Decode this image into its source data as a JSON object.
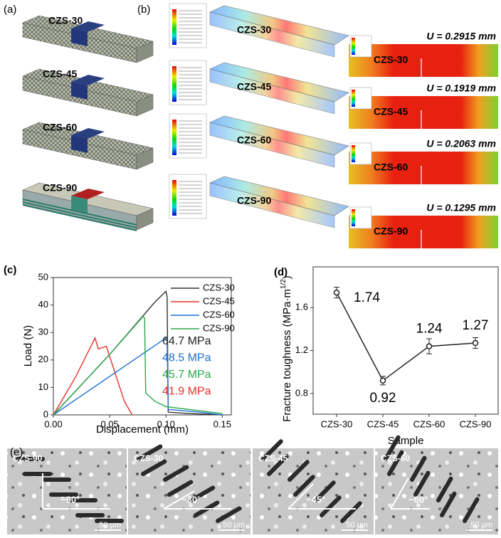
{
  "figure": {
    "panel_a": {
      "label": "(a)",
      "samples": [
        "CZS-30",
        "CZS-45",
        "CZS-60",
        "CZS-90"
      ]
    },
    "panel_b": {
      "label": "(b)",
      "samples": [
        "CZS-30",
        "CZS-45",
        "CZS-60",
        "CZS-90"
      ],
      "zoom_samples": [
        "CZS-30",
        "CZS-45",
        "CZS-60",
        "CZS-90"
      ],
      "displacements": [
        "U = 0.2915 mm",
        "U = 0.1919 mm",
        "U = 0.2063 mm",
        "U = 0.1295 mm"
      ]
    },
    "panel_e": {
      "label": "(e)",
      "images": [
        {
          "sample": "CZS-90",
          "angle": "~90°",
          "scale": "50 μm"
        },
        {
          "sample": "CZS-30",
          "angle": "~30°",
          "scale": "50 μm"
        },
        {
          "sample": "CZS-45",
          "angle": "~45°",
          "scale": "50 μm"
        },
        {
          "sample": "CZS-60",
          "angle": "~60°",
          "scale": "50 μm"
        }
      ]
    }
  },
  "chart_data": [
    {
      "type": "line",
      "panel": "(c)",
      "xlabel": "Displacement (mm)",
      "ylabel": "Load (N)",
      "xlim": [
        0,
        0.158
      ],
      "ylim": [
        0,
        50
      ],
      "xticks": [
        {
          "value": 0,
          "label": "0.00"
        },
        0.05,
        {
          "value": 0.1,
          "label": "0.10"
        },
        0.15
      ],
      "yticks": [
        0,
        10,
        20,
        30,
        40,
        50
      ],
      "series": [
        {
          "name": "CZS-30",
          "color": "#333333",
          "x": [
            0,
            0.05,
            0.09,
            0.1,
            0.101,
            0.102,
            0.12,
            0.15
          ],
          "values": [
            0,
            22,
            41,
            45,
            43,
            1,
            0.5,
            0
          ]
        },
        {
          "name": "CZS-45",
          "color": "#e8302a",
          "x": [
            0,
            0.02,
            0.037,
            0.04,
            0.047,
            0.055,
            0.063,
            0.07
          ],
          "values": [
            0,
            14,
            28,
            24,
            25,
            15,
            5,
            0
          ]
        },
        {
          "name": "CZS-60",
          "color": "#1f6fd1",
          "x": [
            0,
            0.05,
            0.1,
            0.101,
            0.102,
            0.13,
            0.15
          ],
          "values": [
            0,
            14,
            28,
            27,
            2,
            1,
            0
          ]
        },
        {
          "name": "CZS-90",
          "color": "#2aa84a",
          "x": [
            0,
            0.05,
            0.08,
            0.081,
            0.082,
            0.09,
            0.1,
            0.13,
            0.15
          ],
          "values": [
            0,
            22,
            36,
            35,
            8,
            5,
            3,
            1.5,
            0.5
          ]
        }
      ],
      "annotations": [
        {
          "text": "64.7 MPa",
          "color": "#222222"
        },
        {
          "text": "48.5 MPa",
          "color": "#1f6fd1"
        },
        {
          "text": "45.7 MPa",
          "color": "#2aa84a"
        },
        {
          "text": "41.9 MPa",
          "color": "#e8302a"
        }
      ]
    },
    {
      "type": "errorline",
      "panel": "(d)",
      "xlabel": "Sample",
      "ylabel": "Fracture toughness (MPa·m",
      "ylabel_sup": "1/2",
      "ylabel_end": ")",
      "categories": [
        "CZS-30",
        "CZS-45",
        "CZS-60",
        "CZS-90"
      ],
      "values": [
        1.74,
        0.92,
        1.24,
        1.27
      ],
      "errors": [
        0.05,
        0.04,
        0.07,
        0.05
      ],
      "color": "#222222",
      "ylim": [
        0.607,
        1.98
      ],
      "yticks": [
        0.8,
        1.2,
        1.6
      ]
    }
  ]
}
